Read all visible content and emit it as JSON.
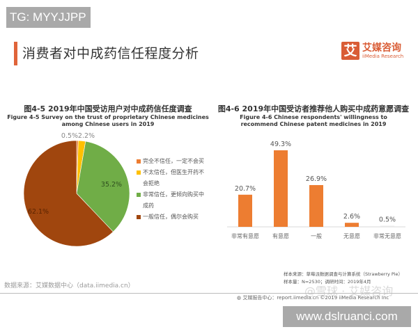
{
  "overlay": {
    "tg_label": "TG: MYYJJPP",
    "url_label": "www.dslruanci.com"
  },
  "header": {
    "title": "消费者对中成药信任程度分析"
  },
  "logo": {
    "mark": "艾",
    "name_cn": "艾媒咨询",
    "name_en": "iiMedia Research"
  },
  "colors": {
    "accent": "#e0643a",
    "bar": "#ed7d31",
    "pie_distrust": "#ed7d31",
    "pie_low_trust": "#ffc000",
    "pie_high_trust": "#70ad47",
    "pie_general_trust": "#a0460e"
  },
  "figure1": {
    "title_cn": "图4-5 2019年中国受访用户对中成药信任度调查",
    "title_en": "Figure 4-5 Survey on the trust of proprietary Chinese medicines among Chinese users in 2019",
    "legend": [
      {
        "label": "完全不信任，一定不会买",
        "color": "#ed7d31"
      },
      {
        "label": "不太信任，但医生开药不会拒绝",
        "color": "#ffc000"
      },
      {
        "label": "非常信任，更倾向购买中成药",
        "color": "#70ad47"
      },
      {
        "label": "一般信任，偶尔会购买",
        "color": "#a0460e"
      }
    ]
  },
  "figure2": {
    "title_cn": "图4-6 2019年中国受访者推荐他人购买中成药意愿调查",
    "title_en": "Figure 4-6 Chinese respondents' willingness to recommend Chinese patent medicines in 2019"
  },
  "chart_data": [
    {
      "type": "pie",
      "title": "图4-5 2019年中国受访用户对中成药信任度调查",
      "subtitle": "Figure 4-5 Survey on the trust of proprietary Chinese medicines among Chinese users in 2019",
      "categories": [
        "完全不信任，一定不会买",
        "不太信任，但医生开药不会拒绝",
        "非常信任，更倾向购买中成药",
        "一般信任，偶尔会购买"
      ],
      "values": [
        0.5,
        2.2,
        35.2,
        62.1
      ],
      "labels": [
        "0.5%",
        "2.2%",
        "35.2%",
        "62.1%"
      ],
      "legend_position": "right"
    },
    {
      "type": "bar",
      "title": "图4-6 2019年中国受访者推荐他人购买中成药意愿调查",
      "subtitle": "Figure 4-6 Chinese respondents' willingness to recommend Chinese patent medicines in 2019",
      "categories": [
        "非常有意愿",
        "有意愿",
        "一般",
        "无意愿",
        "非常无意愿"
      ],
      "values": [
        20.7,
        49.3,
        26.9,
        2.6,
        0.5
      ],
      "labels": [
        "20.7%",
        "49.3%",
        "26.9%",
        "2.6%",
        "0.5%"
      ],
      "xlabel": "",
      "ylabel": "",
      "ylim": [
        0,
        55
      ],
      "grid": false
    }
  ],
  "footer": {
    "source": "数据来源：艾媒数据中心（data.iimedia.cn）",
    "sample_source": "样本来源：草莓派数据调查与计算系统（Strawberry Pie）",
    "sample_size": "样本量：N=2530；调研时间：2019年4月",
    "report_center": "艾媒报告中心：report.iimedia.cn  ©2019  iiMedia Research Inc",
    "watermark": "@雪球 · 艾媒咨询"
  }
}
